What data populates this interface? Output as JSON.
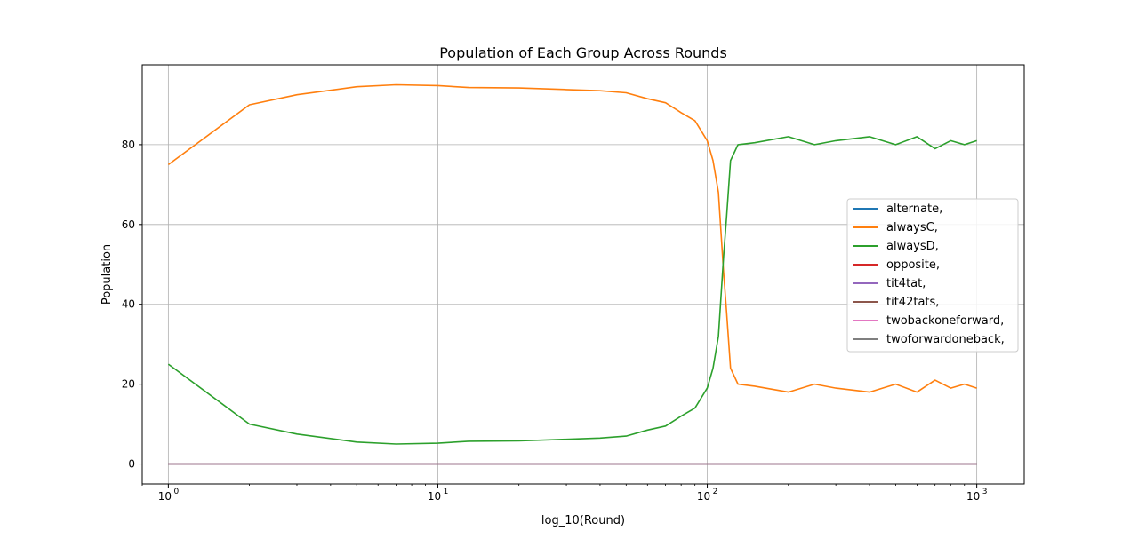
{
  "chart_data": {
    "type": "line",
    "title": "Population of Each Group Across Rounds",
    "xlabel": "log_10(Round)",
    "ylabel": "Population",
    "xscale": "log",
    "xlim": [
      0.8,
      1500
    ],
    "ylim": [
      -5,
      100
    ],
    "xticks": [
      {
        "value": 1,
        "base": "10",
        "exp": "0"
      },
      {
        "value": 10,
        "base": "10",
        "exp": "1"
      },
      {
        "value": 100,
        "base": "10",
        "exp": "2"
      },
      {
        "value": 1000,
        "base": "10",
        "exp": "3"
      }
    ],
    "yticks": [
      0,
      20,
      40,
      60,
      80
    ],
    "grid": true,
    "legend_position": "center-right",
    "series": [
      {
        "name": "alternate,",
        "color": "#1f77b4",
        "x": [
          1,
          1000
        ],
        "y": [
          0,
          0
        ]
      },
      {
        "name": "alwaysC,",
        "color": "#ff7f0e",
        "x": [
          1,
          2,
          3,
          5,
          7,
          10,
          13,
          20,
          30,
          40,
          50,
          60,
          70,
          80,
          90,
          100,
          105,
          110,
          115,
          118,
          122,
          130,
          150,
          200,
          250,
          300,
          400,
          500,
          600,
          700,
          800,
          900,
          1000
        ],
        "y": [
          75,
          90,
          92.5,
          94.5,
          95,
          94.8,
          94.3,
          94.2,
          93.8,
          93.5,
          93,
          91.5,
          90.5,
          88,
          86,
          81,
          76,
          68,
          48,
          38,
          24,
          20,
          19.5,
          18,
          20,
          19,
          18,
          20,
          18,
          21,
          19,
          20,
          19
        ]
      },
      {
        "name": "alwaysD,",
        "color": "#2ca02c",
        "x": [
          1,
          2,
          3,
          5,
          7,
          10,
          13,
          20,
          30,
          40,
          50,
          60,
          70,
          80,
          90,
          100,
          105,
          110,
          115,
          118,
          122,
          130,
          150,
          200,
          250,
          300,
          400,
          500,
          600,
          700,
          800,
          900,
          1000
        ],
        "y": [
          25,
          10,
          7.5,
          5.5,
          5,
          5.2,
          5.7,
          5.8,
          6.2,
          6.5,
          7,
          8.5,
          9.5,
          12,
          14,
          19,
          24,
          32,
          52,
          62,
          76,
          80,
          80.5,
          82,
          80,
          81,
          82,
          80,
          82,
          79,
          81,
          80,
          81
        ]
      },
      {
        "name": "opposite,",
        "color": "#d62728",
        "x": [
          1,
          1000
        ],
        "y": [
          0,
          0
        ]
      },
      {
        "name": "tit4tat,",
        "color": "#9467bd",
        "x": [
          1,
          1000
        ],
        "y": [
          0,
          0
        ]
      },
      {
        "name": "tit42tats,",
        "color": "#8c564b",
        "x": [
          1,
          1000
        ],
        "y": [
          0,
          0
        ]
      },
      {
        "name": "twobackoneforward,",
        "color": "#e377c2",
        "x": [
          1,
          1000
        ],
        "y": [
          0,
          0
        ]
      },
      {
        "name": "twoforwardoneback,",
        "color": "#7f7f7f",
        "x": [
          1,
          1000
        ],
        "y": [
          0,
          0
        ]
      }
    ]
  }
}
